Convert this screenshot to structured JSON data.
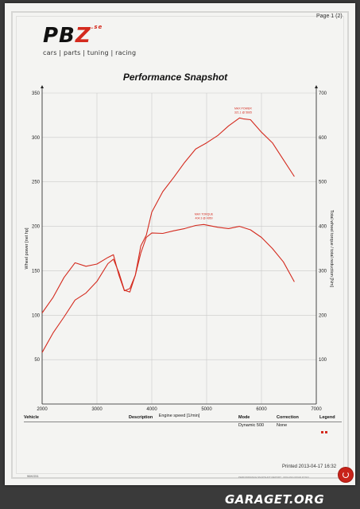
{
  "page": {
    "page_label": "Page 1 (2)",
    "printed": "Printed 2013-04-17 16:32",
    "footer_id": "96KG51",
    "footer_text": "PERFORMANCE SNAPSHOT REPORT · ROLLING ROAD DYNO"
  },
  "logo": {
    "mark_prefix": "PB",
    "mark_accent": "Z",
    "mark_suffix": ".se",
    "tagline": "cars | parts | tuning | racing"
  },
  "watermark": "GARAGET.ORG",
  "table": {
    "headers": {
      "vehicle": "Vehicle",
      "description": "Description",
      "mode": "Mode",
      "correction": "Correction",
      "legend": "Legend"
    },
    "row": {
      "mode": "Dynamic 500",
      "correction": "None"
    }
  },
  "colors": {
    "curve": "#d42a1e",
    "grid": "#c9c9c9",
    "paper": "#f4f4f2"
  },
  "chart_data": {
    "type": "line",
    "title": "Performance Snapshot",
    "xlabel": "Engine speed [1/min]",
    "ylabel": "Wheel power [net hp]",
    "y2label": "Total wheel torque / total reduction [Nm]",
    "xlim": [
      2000,
      7000
    ],
    "ylim": [
      0,
      350
    ],
    "y2lim": [
      0,
      700
    ],
    "x_ticks": [
      2000,
      3000,
      4000,
      5000,
      6000,
      7000
    ],
    "y_ticks": [
      50,
      100,
      150,
      200,
      250,
      300,
      350
    ],
    "y2_ticks": [
      100,
      200,
      300,
      400,
      500,
      600,
      700
    ],
    "grid": true,
    "annotations": [
      {
        "line1": "MAX POWER",
        "line2": "321.1 @ 5665",
        "x": 5665,
        "y": 321
      },
      {
        "line1": "MAX TORQUE",
        "line2": "404.3 @ 4950",
        "x": 4950,
        "y": 202
      }
    ],
    "series": [
      {
        "axis": "left",
        "x": [
          2000,
          2200,
          2400,
          2600,
          2800,
          3000,
          3200,
          3300,
          3400,
          3500,
          3600,
          3700,
          3800,
          3900,
          4000,
          4200,
          4400,
          4600,
          4800,
          5000,
          5200,
          5400,
          5600,
          5665,
          5800,
          6000,
          6200,
          6400,
          6600
        ],
        "y": [
          58,
          80,
          98,
          117,
          125,
          138,
          158,
          163,
          148,
          128,
          126,
          145,
          178,
          190,
          216,
          239,
          255,
          272,
          287,
          294,
          302,
          313,
          322,
          321,
          320,
          306,
          294,
          275,
          256
        ]
      },
      {
        "axis": "right",
        "x": [
          2000,
          2200,
          2400,
          2600,
          2800,
          3000,
          3200,
          3300,
          3400,
          3500,
          3600,
          3700,
          3800,
          3900,
          4000,
          4200,
          4400,
          4600,
          4800,
          4950,
          5200,
          5400,
          5600,
          5800,
          6000,
          6200,
          6400,
          6600
        ],
        "y": [
          205,
          240,
          285,
          318,
          310,
          315,
          330,
          336,
          290,
          255,
          260,
          290,
          340,
          375,
          385,
          384,
          390,
          395,
          402,
          404,
          398,
          395,
          400,
          392,
          375,
          350,
          320,
          275
        ]
      }
    ]
  }
}
